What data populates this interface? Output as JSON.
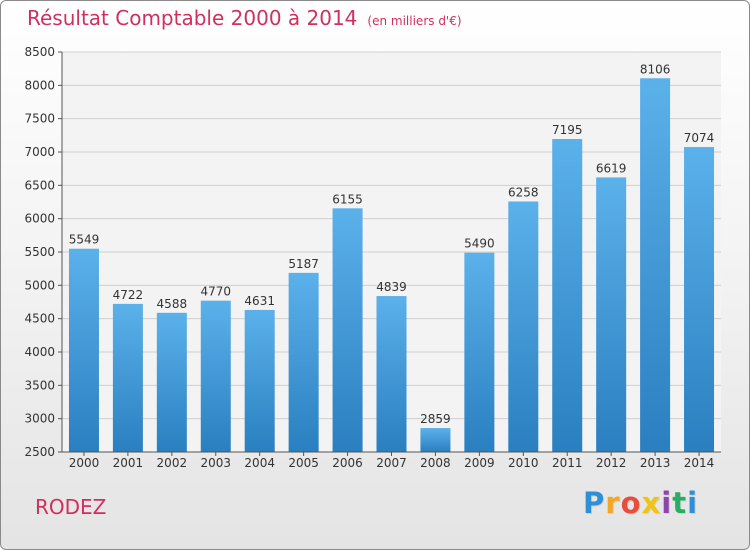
{
  "chart_data": {
    "type": "bar",
    "title": "Résultat Comptable 2000 à 2014",
    "subtitle": "(en milliers d'€)",
    "categories": [
      "2000",
      "2001",
      "2002",
      "2003",
      "2004",
      "2005",
      "2006",
      "2007",
      "2008",
      "2009",
      "2010",
      "2011",
      "2012",
      "2013",
      "2014"
    ],
    "values": [
      5549,
      4722,
      4588,
      4770,
      4631,
      5187,
      6155,
      4839,
      2859,
      5490,
      6258,
      7195,
      6619,
      8106,
      7074
    ],
    "ylim": [
      2500,
      8500
    ],
    "yticks": [
      2500,
      3000,
      3500,
      4000,
      4500,
      5000,
      5500,
      6000,
      6500,
      7000,
      7500,
      8000,
      8500
    ],
    "grid": true,
    "bar_color": "#3a97d9",
    "xlabel": "",
    "ylabel": ""
  },
  "footer": {
    "city": "RODEZ",
    "logo_letters": [
      "P",
      "r",
      "o",
      "x",
      "i",
      "t",
      "i"
    ],
    "logo_colors": [
      "#2e8fd6",
      "#f5a623",
      "#e74c3c",
      "#f1c40f",
      "#8e44ad",
      "#27ae60",
      "#2e8fd6"
    ]
  }
}
